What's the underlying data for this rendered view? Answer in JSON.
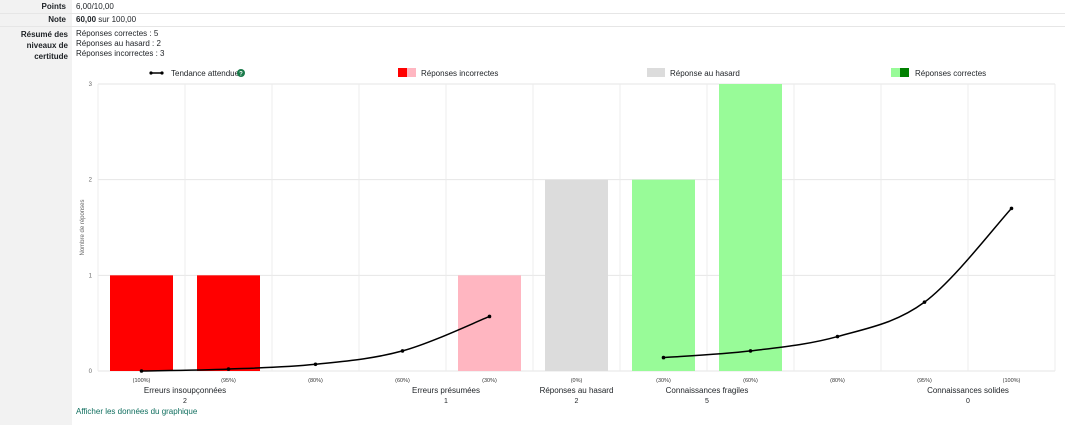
{
  "rows": {
    "points_label": "Points",
    "points_value": "6,00/10,00",
    "note_label": "Note",
    "note_value_bold": "60,00",
    "note_value_rest": " sur 100,00",
    "summary_label_1": "Résumé des",
    "summary_label_2": "niveaux de",
    "summary_label_3": "certitude",
    "summary_lines": [
      "Réponses correctes : 5",
      "Réponses au hasard : 2",
      "Réponses incorrectes : 3"
    ]
  },
  "legend": {
    "trend": "Tendance attendue",
    "incorrect": "Réponses incorrectes",
    "random": "Réponse au hasard",
    "correct": "Réponses correctes"
  },
  "footer_link": "Afficher les données du graphique",
  "colors": {
    "incorrect_strong": "#ff0000",
    "incorrect_light": "#ffb6c1",
    "random": "#dcdcdc",
    "correct_light": "#98fb98",
    "correct_strong": "#008000",
    "trend_line": "#000000",
    "help_icon": "#1a7a4a"
  },
  "chart_data": {
    "type": "bar",
    "ylabel": "Nombre de réponses",
    "ylim": [
      0,
      3
    ],
    "yticks": [
      0,
      1,
      2,
      3
    ],
    "slots": [
      "(100%)",
      "(95%)",
      "(80%)",
      "(60%)",
      "(30%)",
      "(0%)",
      "(30%)",
      "(60%)",
      "(80%)",
      "(95%)",
      "(100%)"
    ],
    "bars": [
      {
        "slot": 0,
        "value": 1,
        "kind": "incorrect_strong"
      },
      {
        "slot": 1,
        "value": 1,
        "kind": "incorrect_strong"
      },
      {
        "slot": 4,
        "value": 1,
        "kind": "incorrect_light"
      },
      {
        "slot": 5,
        "value": 2,
        "kind": "random"
      },
      {
        "slot": 6,
        "value": 2,
        "kind": "correct_light"
      },
      {
        "slot": 7,
        "value": 3,
        "kind": "correct_light"
      }
    ],
    "trend_left": {
      "slots": [
        0,
        1,
        2,
        3,
        4
      ],
      "values": [
        0.0,
        0.02,
        0.07,
        0.21,
        0.57
      ]
    },
    "trend_right": {
      "slots": [
        6,
        7,
        8,
        9,
        10
      ],
      "values": [
        0.14,
        0.21,
        0.36,
        0.72,
        1.7
      ]
    },
    "groups": [
      {
        "label": "Erreurs insoupçonnées",
        "count": "2",
        "slots": [
          0,
          1
        ]
      },
      {
        "label": "Erreurs présumées",
        "count": "1",
        "slots": [
          3,
          4
        ]
      },
      {
        "label": "Réponses au hasard",
        "count": "2",
        "slots": [
          5,
          5
        ]
      },
      {
        "label": "Connaissances fragiles",
        "count": "5",
        "slots": [
          6,
          7
        ]
      },
      {
        "label": "Connaissances solides",
        "count": "0",
        "slots": [
          9,
          10
        ]
      }
    ]
  }
}
